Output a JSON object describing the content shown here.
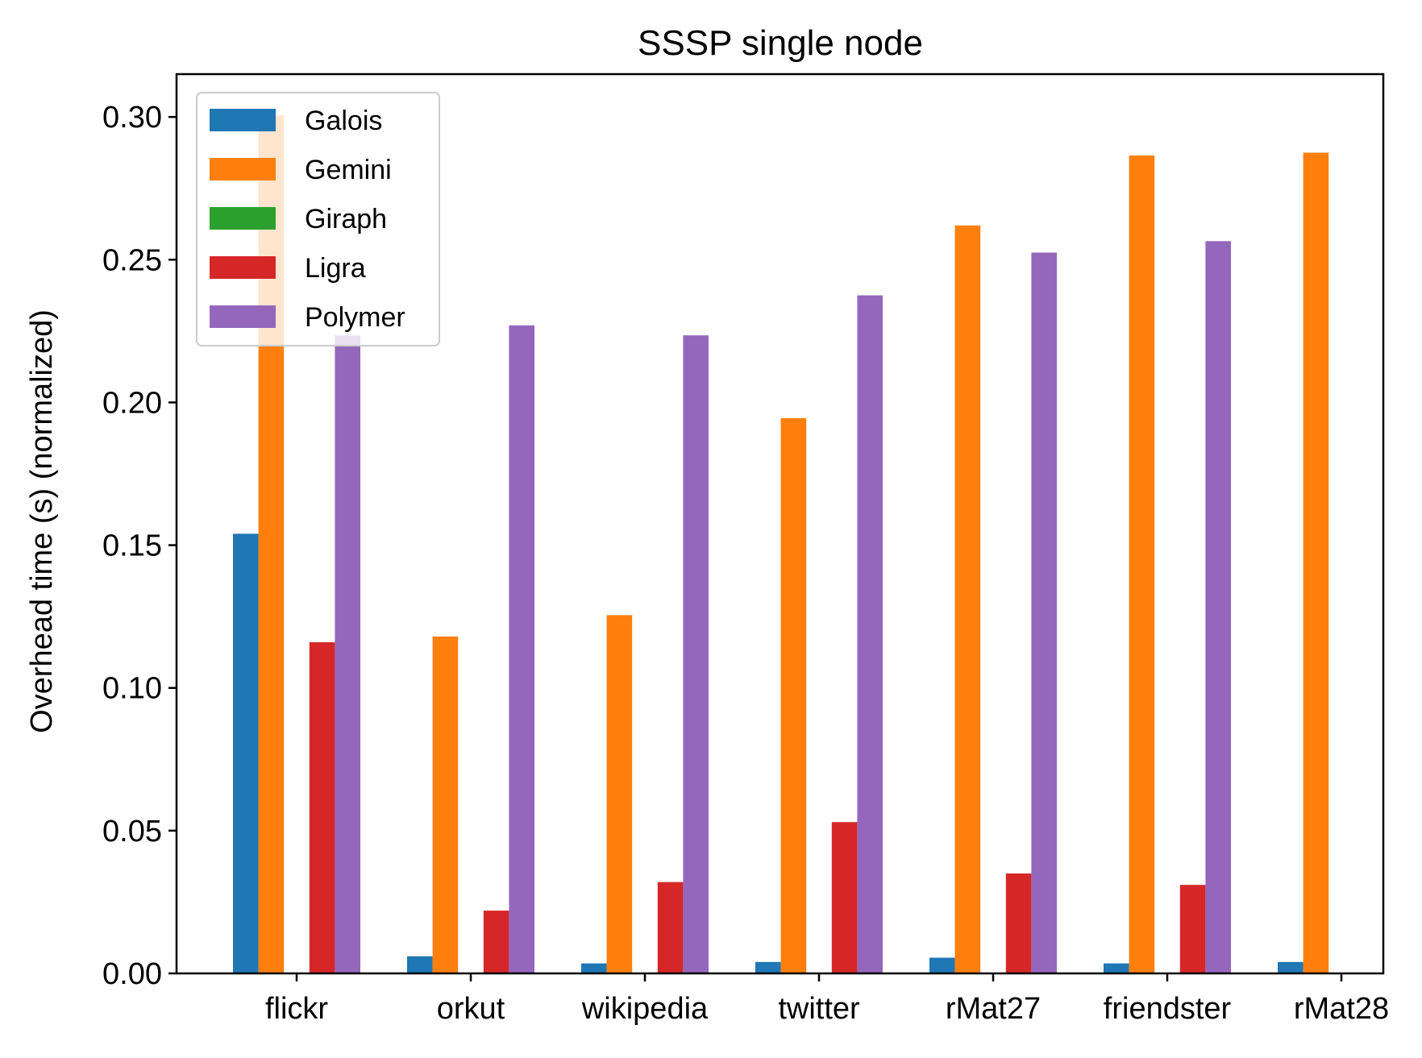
{
  "chart_data": {
    "type": "bar",
    "title": "SSSP single node",
    "xlabel": "",
    "ylabel": "Overhead time (s) (normalized)",
    "categories": [
      "flickr",
      "orkut",
      "wikipedia",
      "twitter",
      "rMat27",
      "friendster",
      "rMat28"
    ],
    "ylim": [
      0,
      0.315
    ],
    "yticks": [
      "0.00",
      "0.05",
      "0.10",
      "0.15",
      "0.20",
      "0.25",
      "0.30"
    ],
    "legend_position": "upper-left",
    "grid": false,
    "series": [
      {
        "name": "Galois",
        "color": "#1f77b4",
        "values": [
          0.154,
          0.006,
          0.0035,
          0.004,
          0.0055,
          0.0035,
          0.004
        ]
      },
      {
        "name": "Gemini",
        "color": "#ff7f0e",
        "values": [
          0.3005,
          0.118,
          0.1255,
          0.1945,
          0.262,
          0.2865,
          0.2875
        ]
      },
      {
        "name": "Giraph",
        "color": "#2ca02c",
        "values": [
          0,
          0,
          0,
          0,
          0,
          0,
          0
        ]
      },
      {
        "name": "Ligra",
        "color": "#d62728",
        "values": [
          0.116,
          0.022,
          0.032,
          0.053,
          0.035,
          0.031,
          0
        ]
      },
      {
        "name": "Polymer",
        "color": "#9467bd",
        "values": [
          0.2235,
          0.227,
          0.2235,
          0.2375,
          0.2525,
          0.2565,
          0
        ]
      }
    ]
  }
}
